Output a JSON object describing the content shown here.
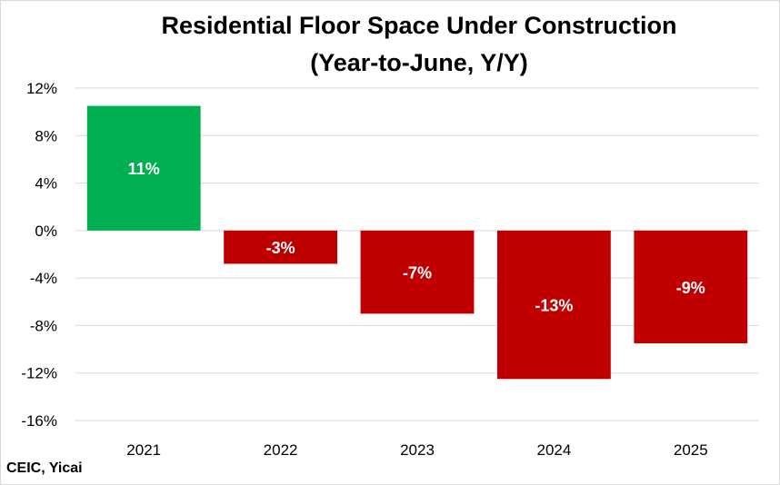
{
  "chart_data": {
    "type": "bar",
    "title": "Residential Floor Space Under Construction",
    "subtitle": "(Year-to-June, Y/Y)",
    "categories": [
      "2021",
      "2022",
      "2023",
      "2024",
      "2025"
    ],
    "values": [
      10.5,
      -2.8,
      -7.0,
      -12.5,
      -9.5
    ],
    "data_labels": [
      "11%",
      "-3%",
      "-7%",
      "-13%",
      "-9%"
    ],
    "ylim": [
      -16,
      12
    ],
    "yticks": [
      12,
      8,
      4,
      0,
      -4,
      -8,
      -12,
      -16
    ],
    "ytick_labels": [
      "12%",
      "8%",
      "4%",
      "0%",
      "-4%",
      "-8%",
      "-12%",
      "-16%"
    ],
    "grid": true,
    "legend": "none",
    "colors": {
      "positive": "#00b050",
      "negative": "#c00000",
      "grid": "#d9d9d9"
    }
  },
  "source": "CEIC, Yicai"
}
